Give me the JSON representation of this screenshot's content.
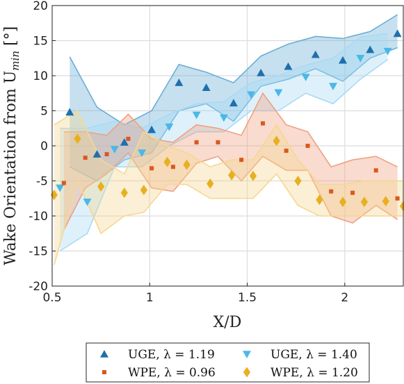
{
  "chart_data": {
    "type": "scatter",
    "xlabel": "X/D",
    "ylabel": "Wake Orientation from U_min [°]",
    "ylabel_parts": {
      "main": "Wake Orientation from U",
      "sub": "min",
      "unit": " [°]"
    },
    "xlim": [
      0.5,
      2.3
    ],
    "ylim": [
      -20,
      20
    ],
    "xticks": [
      0.5,
      1,
      1.5,
      2
    ],
    "xtick_labels": [
      "0.5",
      "1",
      "1.5",
      "2"
    ],
    "yticks": [
      -20,
      -15,
      -10,
      -5,
      0,
      5,
      10,
      15,
      20
    ],
    "ytick_labels": [
      "-20",
      "-15",
      "-10",
      "-5",
      "0",
      "5",
      "10",
      "15",
      "20"
    ],
    "grid": true,
    "legend_placement": "bottom-outside",
    "series": [
      {
        "name": "UGE, λ = 1.19",
        "label_main": "UGE, ",
        "label_lambda": "λ = 1.19",
        "marker": "triangle-up",
        "color": "#1f6fad",
        "band_color": "#6aaed6",
        "x": [
          0.59,
          0.73,
          0.87,
          1.01,
          1.15,
          1.29,
          1.43,
          1.57,
          1.71,
          1.85,
          1.99,
          2.13,
          2.27
        ],
        "y": [
          4.8,
          -1.2,
          0.5,
          2.3,
          9.0,
          8.3,
          6.1,
          10.4,
          11.3,
          13.0,
          12.2,
          13.7,
          16.0
        ],
        "band_upper": [
          12.7,
          5.5,
          3.0,
          5.0,
          11.6,
          10.5,
          9.0,
          12.8,
          14.5,
          15.6,
          15.3,
          16.3,
          18.7
        ],
        "band_lower": [
          -3.0,
          -5.0,
          -2.0,
          -1.0,
          5.0,
          6.0,
          3.5,
          8.5,
          9.5,
          11.0,
          9.2,
          12.5,
          14.0
        ]
      },
      {
        "name": "UGE, λ = 1.40",
        "label_main": "UGE, ",
        "label_lambda": "λ = 1.40",
        "marker": "triangle-down",
        "color": "#4ab8e8",
        "band_color": "#a8daf5",
        "x": [
          0.54,
          0.68,
          0.82,
          0.96,
          1.1,
          1.24,
          1.38,
          1.52,
          1.66,
          1.8,
          1.94,
          2.08,
          2.22
        ],
        "y": [
          -6.0,
          -8.0,
          -0.5,
          -1.0,
          2.7,
          4.4,
          4.0,
          7.3,
          7.6,
          9.8,
          8.5,
          12.5,
          13.5
        ],
        "band_upper": [
          2.5,
          2.5,
          3.5,
          2.5,
          4.5,
          6.0,
          6.3,
          9.0,
          10.0,
          11.5,
          12.5,
          15.5,
          16.0
        ],
        "band_lower": [
          -15.0,
          -12.5,
          -3.0,
          -3.0,
          0.0,
          2.0,
          2.0,
          5.0,
          5.0,
          7.5,
          6.0,
          9.5,
          12.3
        ]
      },
      {
        "name": "WPE, λ = 0.96",
        "label_main": "WPE, ",
        "label_lambda": "λ = 0.96",
        "marker": "square",
        "color": "#d9581f",
        "band_color": "#f0a080",
        "x": [
          0.56,
          0.67,
          0.78,
          0.89,
          1.01,
          1.12,
          1.24,
          1.35,
          1.47,
          1.58,
          1.7,
          1.81,
          1.93,
          2.04,
          2.16,
          2.27
        ],
        "y": [
          -5.3,
          -1.7,
          -1.2,
          1.0,
          -3.2,
          -3.0,
          0.5,
          0.5,
          -2.0,
          3.2,
          -0.7,
          0.0,
          -6.5,
          -6.7,
          -3.5,
          -7.5
        ],
        "band_upper": [
          2.0,
          2.0,
          1.5,
          4.5,
          1.0,
          0.5,
          3.0,
          2.5,
          1.5,
          7.5,
          3.0,
          2.0,
          -3.0,
          -2.0,
          -1.5,
          -3.0
        ],
        "band_lower": [
          -12.0,
          -6.0,
          -4.0,
          -1.0,
          -6.0,
          -6.5,
          -2.5,
          -1.5,
          -5.0,
          -1.5,
          -3.5,
          -3.5,
          -10.0,
          -11.0,
          -8.5,
          -10.5
        ]
      },
      {
        "name": "WPE, λ = 1.20",
        "label_main": "WPE, ",
        "label_lambda": "λ = 1.20",
        "marker": "diamond",
        "color": "#e8b020",
        "band_color": "#f5d890",
        "x": [
          0.51,
          0.63,
          0.75,
          0.87,
          0.97,
          1.09,
          1.19,
          1.31,
          1.42,
          1.53,
          1.65,
          1.76,
          1.87,
          1.99,
          2.1,
          2.21,
          2.3
        ],
        "y": [
          -7.0,
          1.0,
          -5.8,
          -6.7,
          -6.3,
          -2.3,
          -2.7,
          -5.4,
          -4.2,
          -4.3,
          0.7,
          -5.0,
          -7.7,
          -8.0,
          -8.0,
          -7.9,
          -8.6
        ],
        "band_upper": [
          3.0,
          5.0,
          -2.0,
          -4.0,
          2.0,
          0.0,
          -1.0,
          -3.0,
          -2.0,
          -2.0,
          3.0,
          -2.0,
          -5.5,
          -5.5,
          -5.0,
          -5.0,
          -5.0
        ],
        "band_lower": [
          -17.0,
          -5.0,
          -12.5,
          -10.0,
          -9.5,
          -5.5,
          -5.5,
          -7.5,
          -7.5,
          -7.5,
          -4.0,
          -8.5,
          -10.0,
          -10.0,
          -10.0,
          -10.0,
          -10.0
        ]
      }
    ]
  }
}
